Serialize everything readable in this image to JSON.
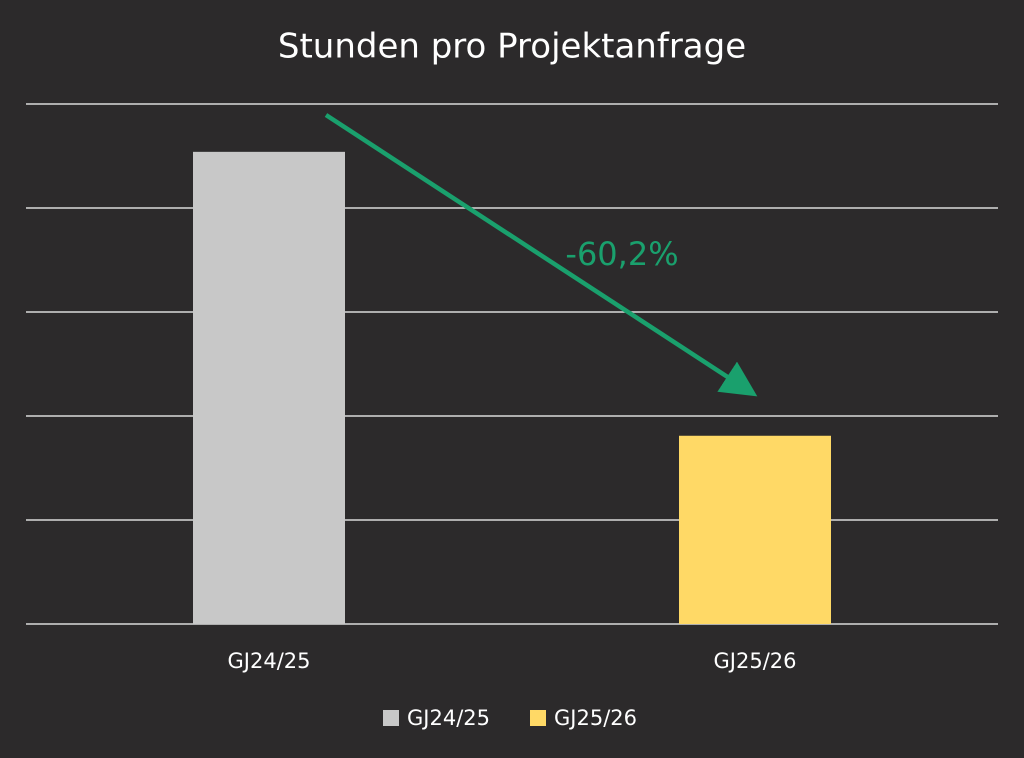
{
  "chart_data": {
    "type": "bar",
    "title": "Stunden pro Projektanfrage",
    "categories": [
      "GJ24/25",
      "GJ25/26"
    ],
    "series": [
      {
        "name": "GJ24/25",
        "color": "#c8c8c8",
        "values": [
          4.54,
          null
        ]
      },
      {
        "name": "GJ25/26",
        "color": "#ffd966",
        "values": [
          null,
          1.81
        ]
      }
    ],
    "ylim": [
      0,
      5
    ],
    "yticks": [
      0,
      1,
      2,
      3,
      4,
      5
    ],
    "grid": true,
    "annotation": "-60,2%",
    "annotation_color": "#1aa06d",
    "legend": "bottom"
  }
}
